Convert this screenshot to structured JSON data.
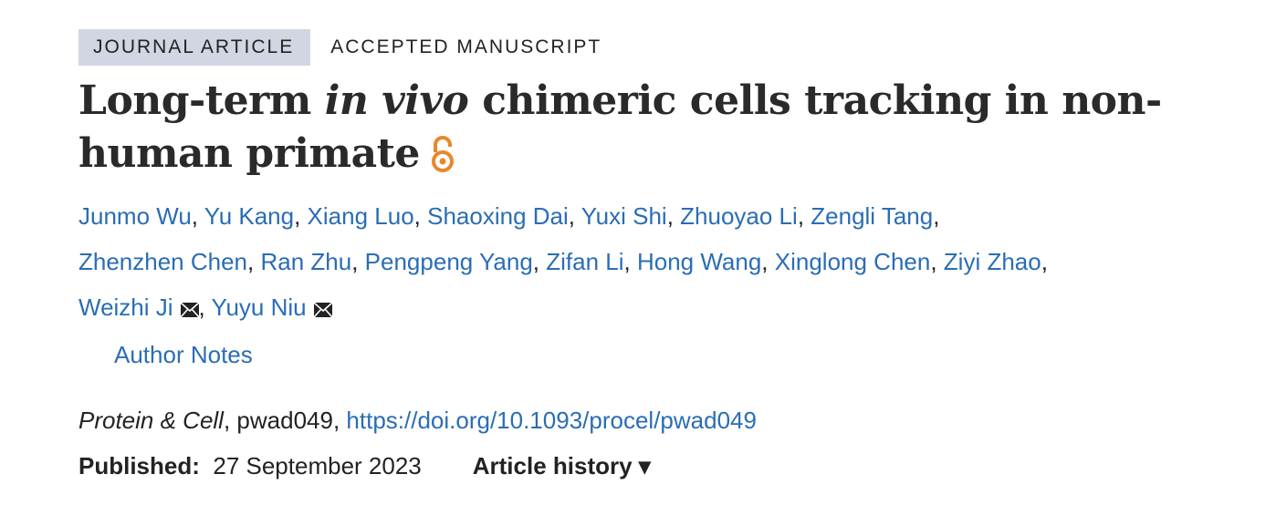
{
  "article_types": [
    "JOURNAL ARTICLE",
    "ACCEPTED MANUSCRIPT"
  ],
  "title": {
    "part1": "Long-term ",
    "italic": "in vivo",
    "part2": " chimeric cells tracking in non-human primate",
    "open_access_icon": "open-lock-icon",
    "open_access_color": "#e8872b"
  },
  "authors": [
    {
      "name": "Junmo Wu"
    },
    {
      "name": "Yu Kang"
    },
    {
      "name": "Xiang Luo"
    },
    {
      "name": "Shaoxing Dai"
    },
    {
      "name": "Yuxi Shi"
    },
    {
      "name": "Zhuoyao Li"
    },
    {
      "name": "Zengli Tang"
    },
    {
      "name": "Zhenzhen Chen"
    },
    {
      "name": "Ran Zhu"
    },
    {
      "name": "Pengpeng Yang"
    },
    {
      "name": "Zifan Li"
    },
    {
      "name": "Hong Wang"
    },
    {
      "name": "Xinglong Chen"
    },
    {
      "name": "Ziyi Zhao"
    },
    {
      "name": "Weizhi Ji",
      "email_icon": "envelope-icon"
    },
    {
      "name": "Yuyu Niu",
      "email_icon": "envelope-icon"
    }
  ],
  "author_notes": "Author Notes",
  "citation": {
    "journal": "Protein & Cell",
    "id": ", pwad049, ",
    "doi": "https://doi.org/10.1093/procel/pwad049"
  },
  "published": {
    "label": "Published:",
    "date": "27 September 2023"
  },
  "article_history": "Article history ▾",
  "colors": {
    "link": "#2a6db5",
    "badge_bg": "#d1d6e2"
  }
}
